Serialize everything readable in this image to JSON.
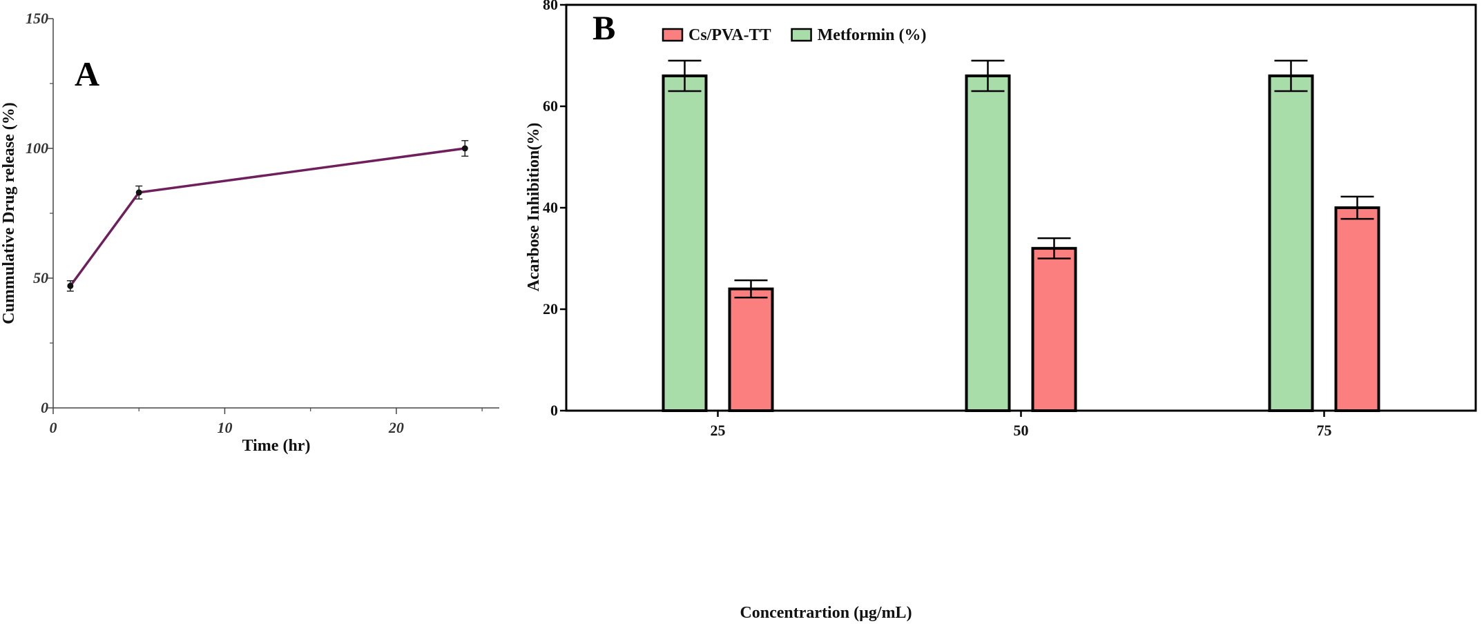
{
  "chart_data": [
    {
      "type": "line",
      "panel_label": "A",
      "xlabel": "Time (hr)",
      "ylabel": "Cummulative Drug release (%)",
      "xlim": [
        0,
        26
      ],
      "ylim": [
        0,
        150
      ],
      "xticks": [
        0,
        10,
        20
      ],
      "yticks": [
        0,
        50,
        100,
        150
      ],
      "grid": false,
      "colors": {
        "line": "#6e1f5c",
        "marker": "#111111"
      },
      "series": [
        {
          "x": [
            1,
            5,
            24
          ],
          "y": [
            47,
            83,
            100
          ],
          "err": [
            2,
            2.5,
            3
          ]
        }
      ]
    },
    {
      "type": "bar",
      "panel_label": "B",
      "xlabel": "Concentrartion (µg/mL)",
      "ylabel": "Acarbose Inhibition(%)",
      "categories": [
        "25",
        "50",
        "75"
      ],
      "ylim": [
        0,
        80
      ],
      "yticks": [
        0,
        20,
        40,
        60,
        80
      ],
      "grid": false,
      "legend_position": "top-center",
      "legend_order": [
        1,
        0
      ],
      "series": [
        {
          "name": "Metformin (%)",
          "color": "#a8dca8",
          "values": [
            66,
            66,
            66
          ],
          "err": [
            3,
            3,
            3
          ]
        },
        {
          "name": "Cs/PVA-TT",
          "color": "#fc7f7f",
          "values": [
            24,
            32,
            40
          ],
          "err": [
            1.7,
            2,
            2.2
          ]
        }
      ]
    }
  ]
}
